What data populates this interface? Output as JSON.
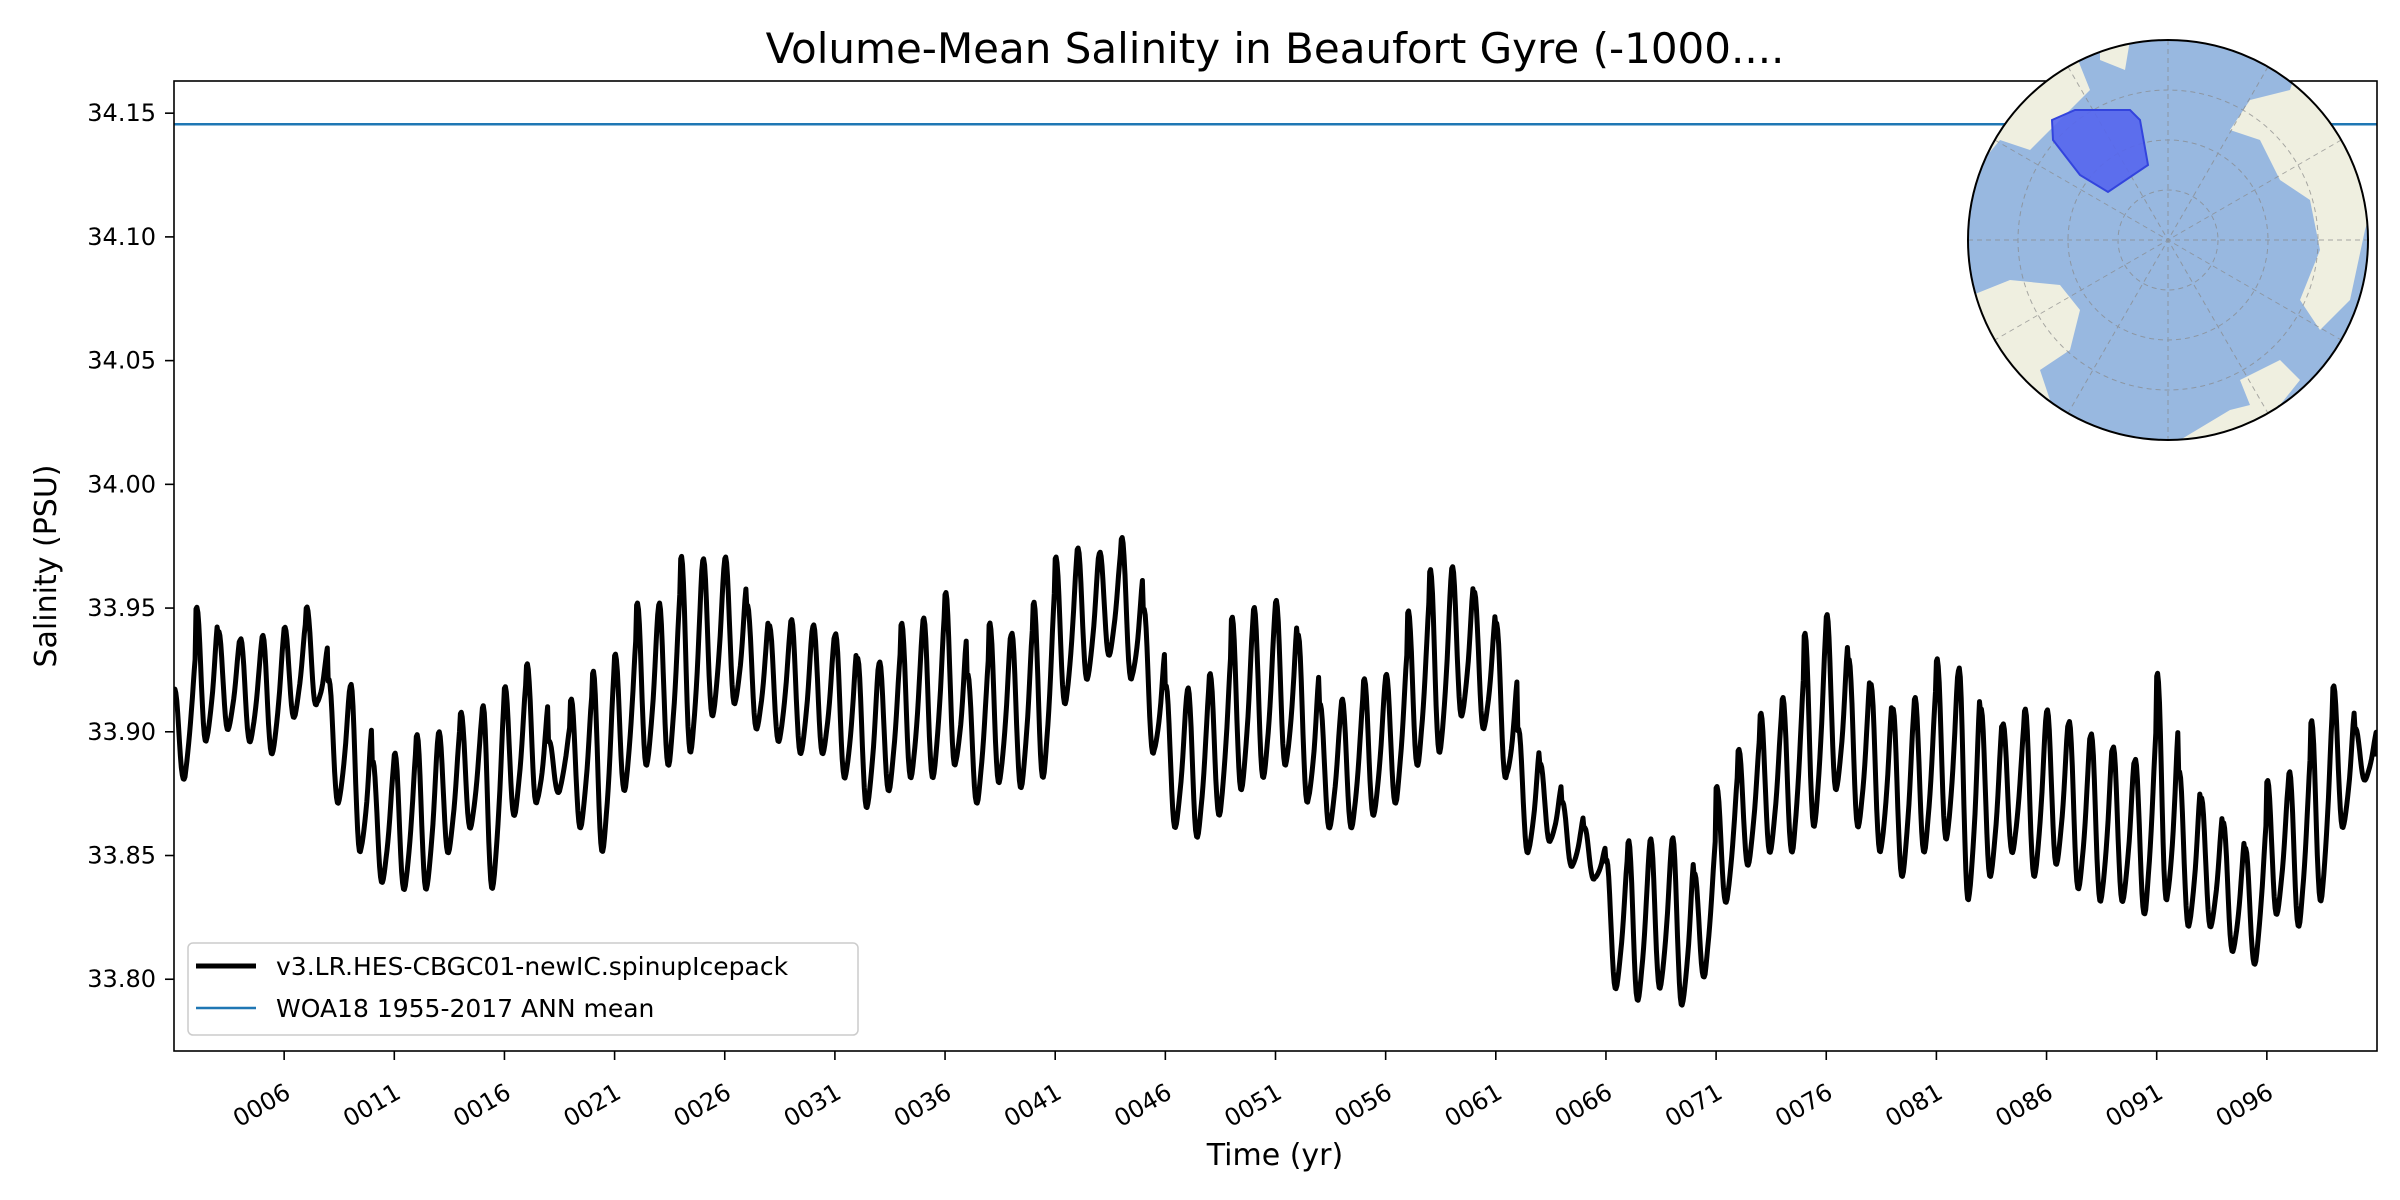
{
  "chart_data": {
    "type": "line",
    "title": "Volume-Mean Salinity in Beaufort Gyre (-1000....",
    "xlabel": "Time (yr)",
    "ylabel": "Salinity (PSU)",
    "xlim": [
      1,
      101
    ],
    "ylim": [
      33.771,
      34.163
    ],
    "x_tick_values": [
      6,
      11,
      16,
      21,
      26,
      31,
      36,
      41,
      46,
      51,
      56,
      61,
      66,
      71,
      76,
      81,
      86,
      91,
      96
    ],
    "x_tick_labels": [
      "0006",
      "0011",
      "0016",
      "0021",
      "0026",
      "0031",
      "0036",
      "0041",
      "0046",
      "0051",
      "0056",
      "0061",
      "0066",
      "0071",
      "0076",
      "0081",
      "0086",
      "0091",
      "0096"
    ],
    "y_tick_values": [
      33.8,
      33.85,
      33.9,
      33.95,
      34.0,
      34.05,
      34.1,
      34.15
    ],
    "y_tick_labels": [
      "33.80",
      "33.85",
      "33.90",
      "33.95",
      "34.00",
      "34.05",
      "34.10",
      "34.15"
    ],
    "grid": false,
    "legend_position": "lower-left",
    "series": [
      {
        "name": "v3.LR.HES-CBGC01-newIC.spinupIcepack",
        "color": "#000000",
        "style": "seasonal-cycle",
        "years": [
          1,
          2,
          3,
          4,
          5,
          6,
          7,
          8,
          9,
          10,
          11,
          12,
          13,
          14,
          15,
          16,
          17,
          18,
          19,
          20,
          21,
          22,
          23,
          24,
          25,
          26,
          27,
          28,
          29,
          30,
          31,
          32,
          33,
          34,
          35,
          36,
          37,
          38,
          39,
          40,
          41,
          42,
          43,
          44,
          45,
          46,
          47,
          48,
          49,
          50,
          51,
          52,
          53,
          54,
          55,
          56,
          57,
          58,
          59,
          60,
          61,
          62,
          63,
          64,
          65,
          66,
          67,
          68,
          69,
          70,
          71,
          72,
          73,
          74,
          75,
          76,
          77,
          78,
          79,
          80,
          81,
          82,
          83,
          84,
          85,
          86,
          87,
          88,
          89,
          90,
          91,
          92,
          93,
          94,
          95,
          96,
          97,
          98,
          99,
          100
        ],
        "annual_max": [
          33.915,
          33.947,
          33.938,
          33.935,
          33.936,
          33.94,
          33.948,
          33.918,
          33.915,
          33.885,
          33.888,
          33.895,
          33.897,
          33.905,
          33.906,
          33.915,
          33.924,
          33.895,
          33.91,
          33.92,
          33.928,
          33.948,
          33.948,
          33.966,
          33.966,
          33.967,
          33.948,
          33.94,
          33.942,
          33.94,
          33.936,
          33.926,
          33.925,
          33.94,
          33.942,
          33.952,
          33.92,
          33.94,
          33.936,
          33.948,
          33.967,
          33.971,
          33.97,
          33.975,
          33.946,
          33.915,
          33.914,
          33.92,
          33.942,
          33.946,
          33.949,
          33.935,
          33.908,
          33.91,
          33.918,
          33.92,
          33.945,
          33.961,
          33.963,
          33.953,
          33.94,
          33.898,
          33.885,
          33.87,
          33.86,
          33.845,
          33.852,
          33.853,
          33.853,
          33.84,
          33.875,
          33.89,
          33.904,
          33.91,
          33.935,
          33.943,
          33.925,
          33.915,
          33.905,
          33.91,
          33.925,
          33.92,
          33.905,
          33.9,
          33.905,
          33.905,
          33.9,
          33.895,
          33.89,
          33.885,
          33.918,
          33.88,
          33.87,
          33.86,
          33.85,
          33.877,
          33.88,
          33.9,
          33.915,
          33.9
        ],
        "annual_min": [
          33.88,
          33.895,
          33.9,
          33.895,
          33.89,
          33.905,
          33.91,
          33.87,
          33.85,
          33.838,
          33.835,
          33.835,
          33.85,
          33.86,
          33.835,
          33.865,
          33.87,
          33.875,
          33.86,
          33.85,
          33.875,
          33.885,
          33.885,
          33.89,
          33.905,
          33.91,
          33.9,
          33.895,
          33.89,
          33.89,
          33.88,
          33.868,
          33.875,
          33.88,
          33.88,
          33.885,
          33.87,
          33.878,
          33.876,
          33.88,
          33.91,
          33.92,
          33.93,
          33.92,
          33.89,
          33.86,
          33.856,
          33.865,
          33.875,
          33.88,
          33.885,
          33.87,
          33.86,
          33.86,
          33.865,
          33.87,
          33.885,
          33.89,
          33.905,
          33.9,
          33.88,
          33.85,
          33.855,
          33.845,
          33.84,
          33.795,
          33.79,
          33.795,
          33.788,
          33.8,
          33.83,
          33.845,
          33.85,
          33.85,
          33.86,
          33.875,
          33.86,
          33.85,
          33.84,
          33.85,
          33.855,
          33.83,
          33.84,
          33.85,
          33.84,
          33.845,
          33.835,
          33.83,
          33.83,
          33.825,
          33.83,
          33.82,
          33.82,
          33.81,
          33.805,
          33.825,
          33.82,
          33.83,
          33.86,
          33.88
        ]
      },
      {
        "name": "WOA18 1955-2017 ANN mean",
        "color": "#1f77b4",
        "style": "constant",
        "value": 34.1455
      }
    ],
    "inset_map": {
      "type": "north-polar-map",
      "position": "top-right",
      "colors": {
        "ocean": "#98b8e0",
        "land": "#efefe0",
        "region": "#5566ee",
        "region_edge": "#3344dd"
      }
    }
  }
}
